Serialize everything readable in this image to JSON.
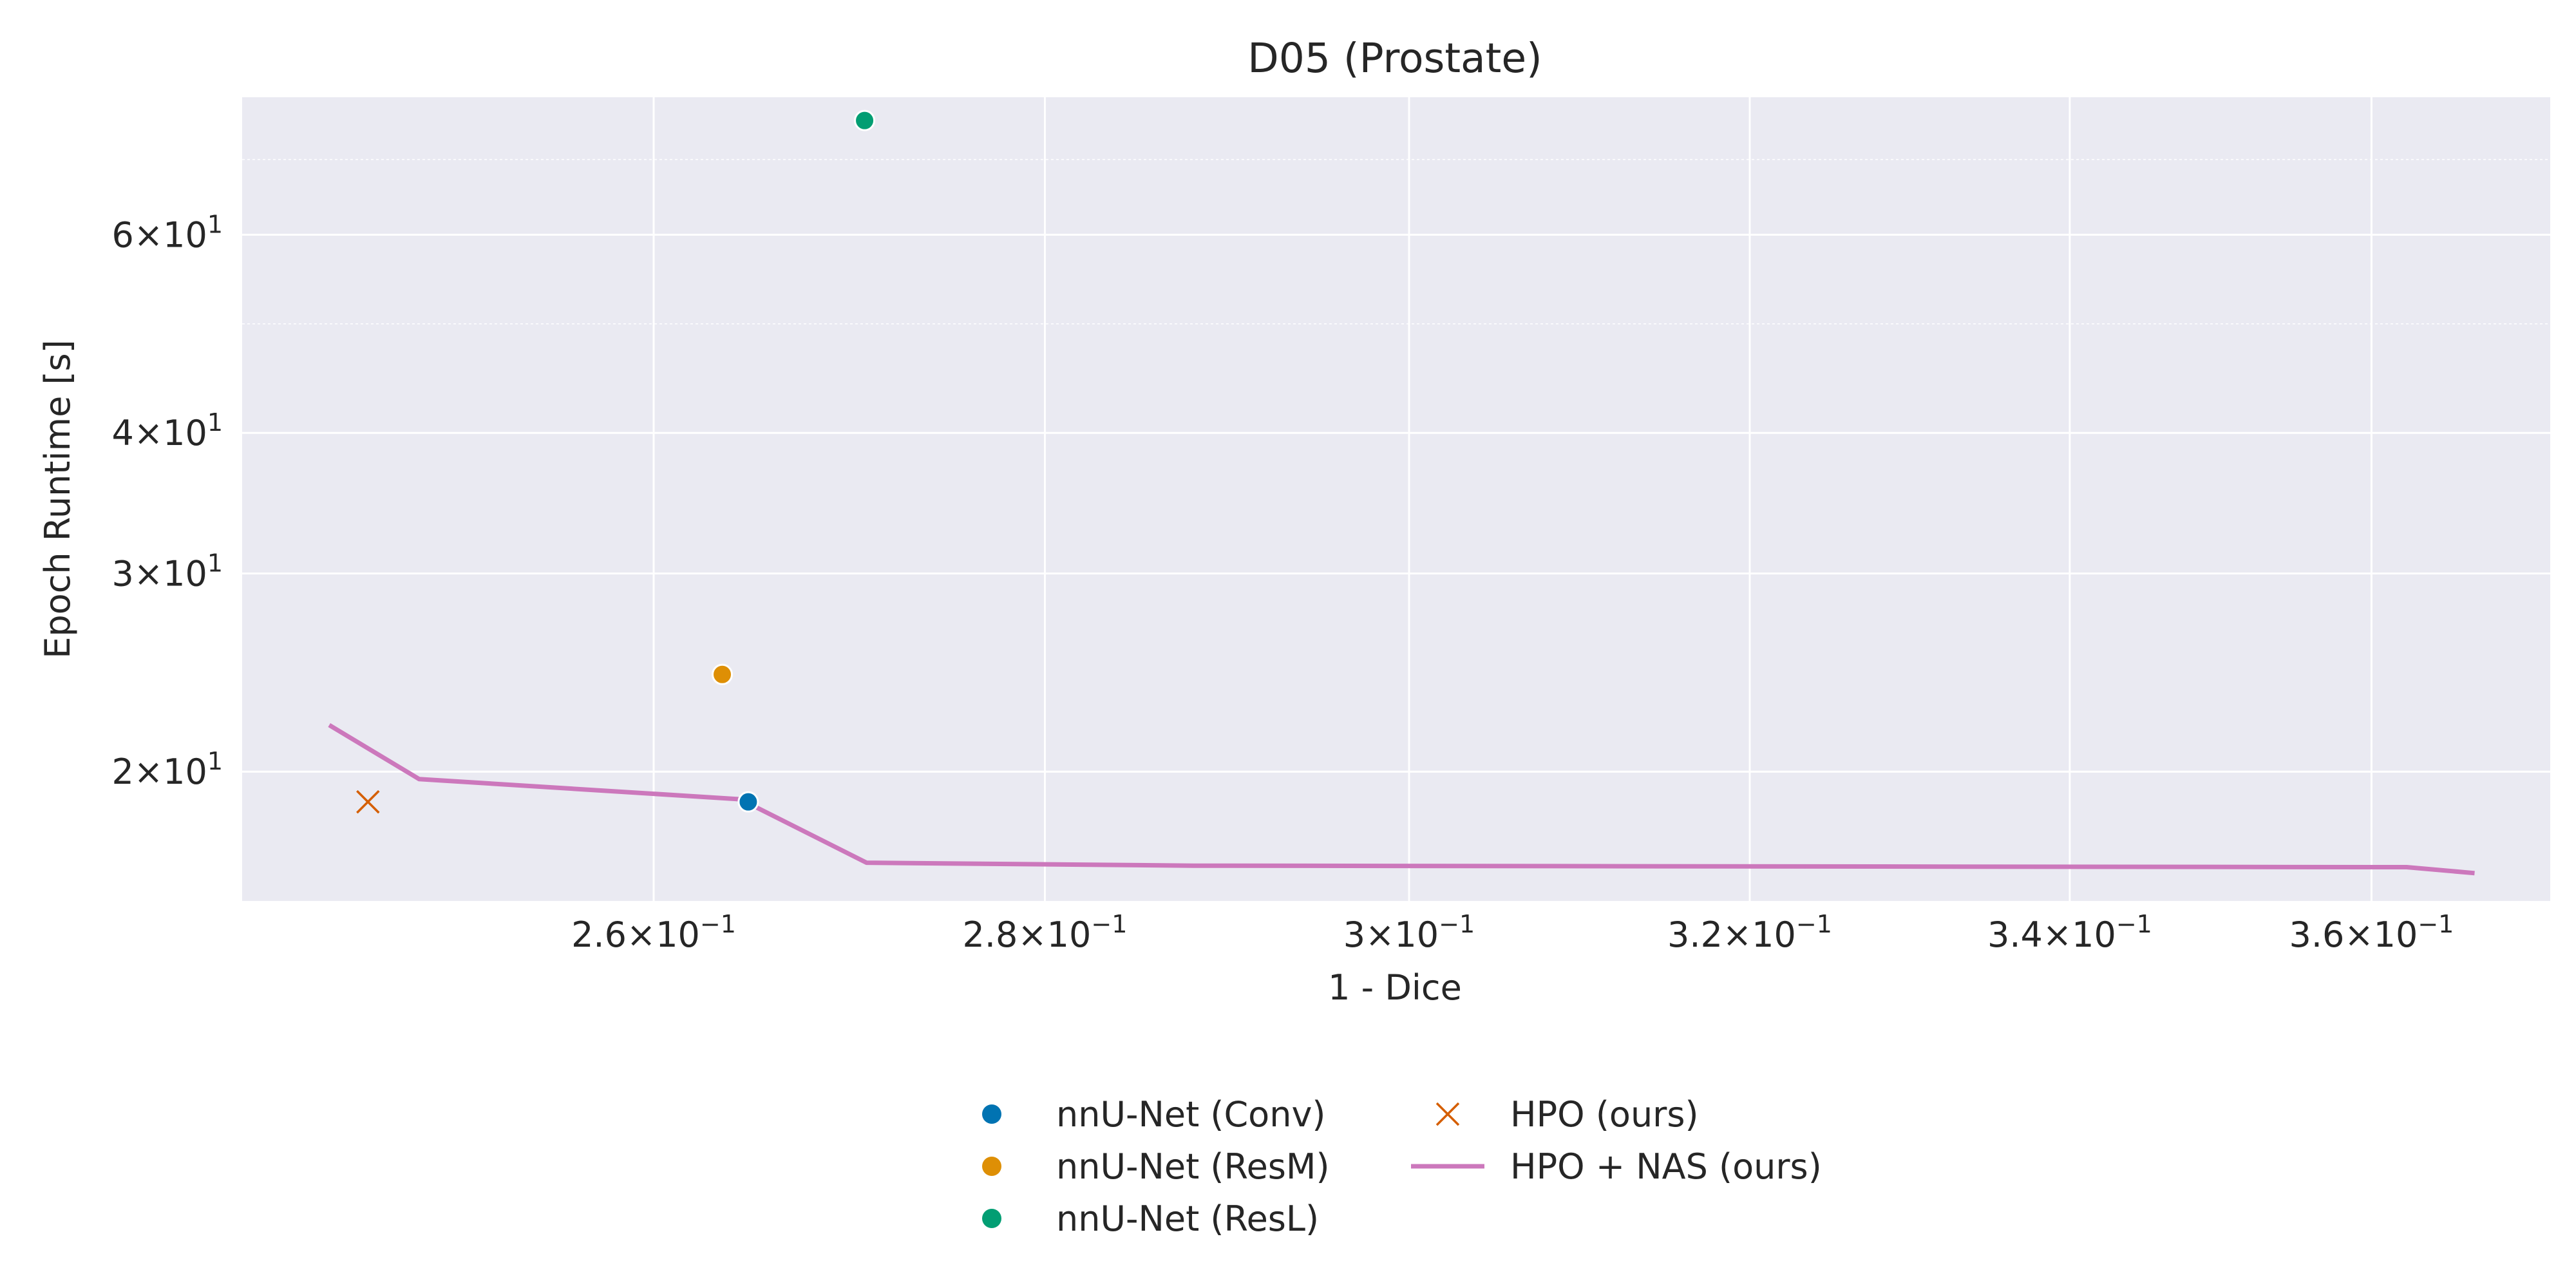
{
  "chart_data": {
    "type": "scatter",
    "title": "D05 (Prostate)",
    "xlabel": "1 - Dice",
    "ylabel": "Epoch Runtime [s]",
    "x_scale": "log",
    "y_scale": "log",
    "xlim": [
      0.2405,
      0.3724
    ],
    "ylim": [
      15.35,
      79.5
    ],
    "grid": true,
    "x_ticks": [
      {
        "value": 0.26,
        "base": "2.6",
        "exp": "−1"
      },
      {
        "value": 0.28,
        "base": "2.8",
        "exp": "−1"
      },
      {
        "value": 0.3,
        "base": "3",
        "exp": "−1"
      },
      {
        "value": 0.32,
        "base": "3.2",
        "exp": "−1"
      },
      {
        "value": 0.34,
        "base": "3.4",
        "exp": "−1"
      },
      {
        "value": 0.36,
        "base": "3.6",
        "exp": "−1"
      }
    ],
    "y_ticks": [
      {
        "value": 20,
        "base": "2",
        "exp": "1"
      },
      {
        "value": 30,
        "base": "3",
        "exp": "1"
      },
      {
        "value": 40,
        "base": "4",
        "exp": "1"
      },
      {
        "value": 60,
        "base": "6",
        "exp": "1"
      }
    ],
    "y_minor_grid": [
      50,
      70
    ],
    "series": [
      {
        "name": "nnU-Net (Conv)",
        "kind": "point",
        "color": "#0173b2",
        "points": [
          {
            "x": 0.2647,
            "y": 18.8
          }
        ]
      },
      {
        "name": "nnU-Net (ResM)",
        "kind": "point",
        "color": "#de8f05",
        "points": [
          {
            "x": 0.2634,
            "y": 24.4
          }
        ]
      },
      {
        "name": "nnU-Net (ResL)",
        "kind": "point",
        "color": "#029e73",
        "points": [
          {
            "x": 0.2706,
            "y": 75.8
          }
        ]
      },
      {
        "name": "HPO (ours)",
        "kind": "cross",
        "color": "#d55e00",
        "points": [
          {
            "x": 0.2463,
            "y": 18.8
          }
        ]
      },
      {
        "name": "HPO + NAS (ours)",
        "kind": "line",
        "color": "#cc78bc",
        "points": [
          {
            "x": 0.2445,
            "y": 22.0
          },
          {
            "x": 0.2487,
            "y": 19.7
          },
          {
            "x": 0.2643,
            "y": 18.9
          },
          {
            "x": 0.2707,
            "y": 16.6
          },
          {
            "x": 0.288,
            "y": 16.5
          },
          {
            "x": 0.36,
            "y": 16.45
          },
          {
            "x": 0.3624,
            "y": 16.45
          },
          {
            "x": 0.3671,
            "y": 16.25
          }
        ]
      }
    ],
    "legend": {
      "placement": "bottom-center",
      "columns": 2
    }
  }
}
